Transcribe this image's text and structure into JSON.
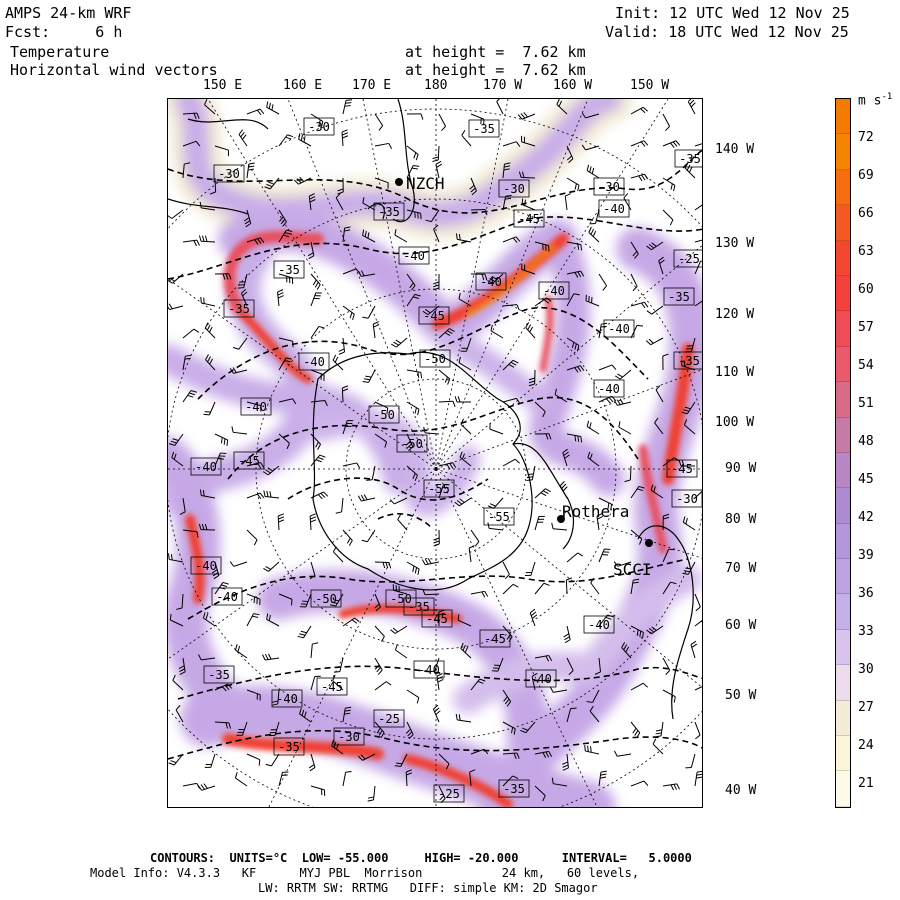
{
  "header": {
    "model": "AMPS 24-km WRF",
    "fcst": "Fcst:     6 h",
    "init": "Init: 12 UTC Wed 12 Nov 25",
    "valid": "Valid: 18 UTC Wed 12 Nov 25",
    "field1": "Temperature",
    "field2": "Horizontal wind vectors",
    "height1": "at height =  7.62 km",
    "height2": "at height =  7.62 km"
  },
  "lon_labels": [
    "150 E",
    "160 E",
    "170 E",
    "180",
    "170 W",
    "160 W",
    "150 W"
  ],
  "lat_labels": [
    "140 W",
    "130 W",
    "120 W",
    "110 W",
    "100 W",
    "90 W",
    "80 W",
    "70 W",
    "60 W",
    "50 W",
    "40 W"
  ],
  "stations": [
    "NZCH",
    "Rothera",
    "SCCI"
  ],
  "contour_labels": [
    "-30",
    "-35",
    "-30",
    "-30",
    "-35",
    "-30",
    "-25",
    "-35",
    "-35",
    "-40",
    "-45",
    "-35",
    "-40",
    "-40",
    "-45",
    "-40",
    "-50",
    "-35",
    "-40",
    "-40",
    "-50",
    "-50",
    "-45",
    "-40",
    "-40",
    "-55",
    "-45",
    "-40",
    "-35",
    "-40",
    "-50",
    "-50",
    "-45",
    "-55",
    "-40",
    "-45",
    "-40",
    "-40",
    "-35",
    "-40",
    "-45",
    "-25",
    "-30",
    "-35",
    "-25",
    "-35",
    "-40",
    "-35",
    "-30"
  ],
  "colorbar": {
    "units": "m s-1",
    "labels": [
      "72",
      "69",
      "66",
      "63",
      "60",
      "57",
      "54",
      "51",
      "48",
      "45",
      "42",
      "39",
      "36",
      "33",
      "30",
      "27",
      "24",
      "21"
    ],
    "colors": [
      "#f47a00",
      "#f58500",
      "#f66e10",
      "#f55a20",
      "#f54630",
      "#f5403c",
      "#f04c56",
      "#e85a6c",
      "#d86a8a",
      "#c67aa6",
      "#b886c4",
      "#ae8ad2",
      "#b496dc",
      "#bba2e2",
      "#c4b0e8",
      "#d8c4ec",
      "#ecdcec",
      "#f4ecd6",
      "#fbf6d8",
      "#fdfbe8"
    ]
  },
  "footer": {
    "contours": "CONTOURS:  UNITS=°C  LOW= -55.000     HIGH= -20.000      INTERVAL=   5.0000",
    "model_info": "Model Info: V4.3.3   KF      MYJ PBL  Morrison           24 km,   60 levels,",
    "physics": "LW: RRTM SW: RRTMG   DIFF: simple KM: 2D Smagor"
  }
}
